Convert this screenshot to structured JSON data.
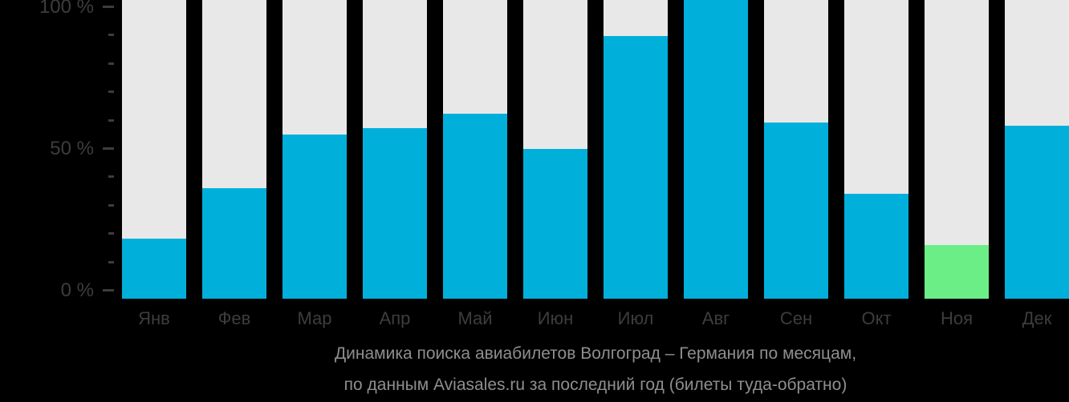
{
  "chart_data": {
    "type": "bar",
    "title": "Динамика поиска авиабилетов Волгоград – Германия по месяцам,",
    "subtitle": "по данным Aviasales.ru за последний год (билеты туда-обратно)",
    "categories": [
      "Янв",
      "Фев",
      "Мар",
      "Апр",
      "Май",
      "Июн",
      "Июл",
      "Авг",
      "Сен",
      "Окт",
      "Ноя",
      "Дек"
    ],
    "values": [
      20,
      37,
      55,
      57,
      62,
      50,
      88,
      100,
      59,
      35,
      18,
      58
    ],
    "unit": "%",
    "ylim": [
      0,
      100
    ],
    "yticks": [
      {
        "value": 0,
        "label": "0 %"
      },
      {
        "value": 50,
        "label": "50 %"
      },
      {
        "value": 100,
        "label": "100 %"
      }
    ],
    "minor_ytick_step": 10,
    "grid": false,
    "legend": null,
    "highlight_month": "Ноя",
    "highlight_index": 10,
    "colors": {
      "bar": "#00b0db",
      "highlight_bar": "#6cee87",
      "track": "#e8e8e8",
      "axis_text": "#3d3d3d",
      "caption_text": "#8e8e8e",
      "background": "#000000"
    }
  }
}
